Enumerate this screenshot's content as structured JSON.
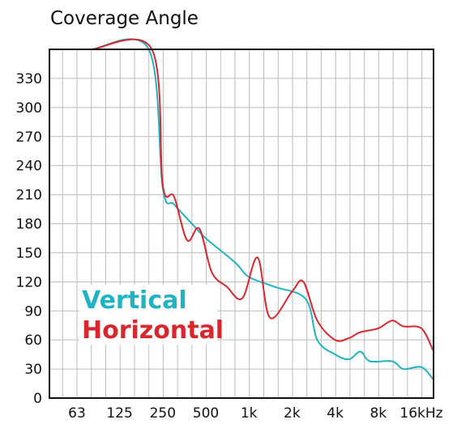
{
  "chart_data": {
    "type": "line",
    "title": "Coverage Angle",
    "xlabel": "",
    "ylabel": "",
    "x_scale": "log",
    "xlim": [
      40,
      20000
    ],
    "ylim": [
      0,
      360
    ],
    "grid": true,
    "legend_placement": "bottom-left",
    "x_ticks": [
      {
        "label": "63",
        "value": 63
      },
      {
        "label": "125",
        "value": 125
      },
      {
        "label": "250",
        "value": 250
      },
      {
        "label": "500",
        "value": 500
      },
      {
        "label": "1k",
        "value": 1000
      },
      {
        "label": "2k",
        "value": 2000
      },
      {
        "label": "4k",
        "value": 4000
      },
      {
        "label": "8k",
        "value": 8000
      },
      {
        "label": "16kHz",
        "value": 16000
      }
    ],
    "y_ticks": [
      0,
      30,
      60,
      90,
      120,
      150,
      180,
      210,
      240,
      270,
      300,
      330
    ],
    "series": [
      {
        "name": "Vertical",
        "color": "#1fb3c3",
        "points": [
          [
            80,
            360
          ],
          [
            200,
            360
          ],
          [
            250,
            217
          ],
          [
            300,
            200
          ],
          [
            400,
            180
          ],
          [
            500,
            165
          ],
          [
            800,
            140
          ],
          [
            1000,
            125
          ],
          [
            1500,
            115
          ],
          [
            2500,
            102
          ],
          [
            3000,
            60
          ],
          [
            4000,
            45
          ],
          [
            5000,
            40
          ],
          [
            6000,
            48
          ],
          [
            7000,
            38
          ],
          [
            10000,
            38
          ],
          [
            12000,
            30
          ],
          [
            16000,
            32
          ],
          [
            20000,
            20
          ]
        ]
      },
      {
        "name": "Horizontal",
        "color": "#d9272e",
        "points": [
          [
            80,
            360
          ],
          [
            210,
            360
          ],
          [
            250,
            220
          ],
          [
            300,
            208
          ],
          [
            370,
            163
          ],
          [
            450,
            175
          ],
          [
            550,
            130
          ],
          [
            700,
            115
          ],
          [
            900,
            103
          ],
          [
            1150,
            145
          ],
          [
            1400,
            83
          ],
          [
            2000,
            110
          ],
          [
            2400,
            120
          ],
          [
            3000,
            80
          ],
          [
            4000,
            60
          ],
          [
            5000,
            62
          ],
          [
            6000,
            68
          ],
          [
            8000,
            72
          ],
          [
            10000,
            80
          ],
          [
            12000,
            74
          ],
          [
            16000,
            72
          ],
          [
            20000,
            50
          ]
        ]
      }
    ]
  },
  "legend": {
    "vertical_label": "Vertical",
    "horizontal_label": "Horizontal"
  }
}
